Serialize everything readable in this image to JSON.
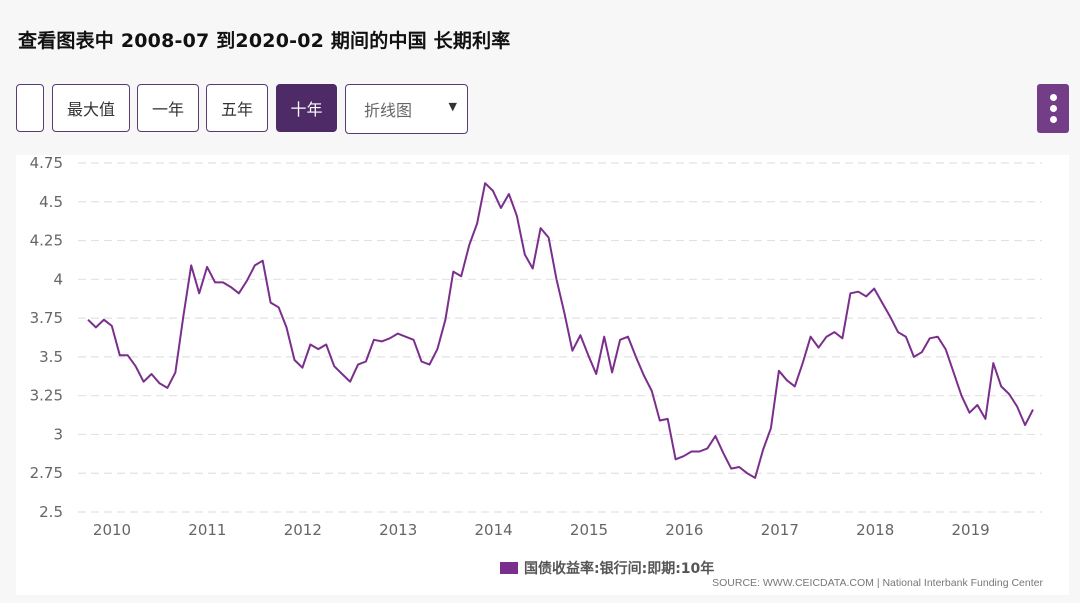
{
  "header": {
    "title": "查看图表中 2008-07 到2020-02 期间的中国 长期利率"
  },
  "toolbar": {
    "blank_button": "",
    "buttons": [
      {
        "label": "最大值",
        "active": false
      },
      {
        "label": "一年",
        "active": false
      },
      {
        "label": "五年",
        "active": false
      },
      {
        "label": "十年",
        "active": true
      }
    ],
    "chart_type_select": {
      "value": "折线图",
      "caret": "▼"
    },
    "menu_icon": "vertical-ellipsis-icon"
  },
  "colors": {
    "line": "#7b2f8c",
    "active_button": "#4e2a67",
    "menu_button": "#733d88",
    "grid": "#e2e2e2",
    "axis_text": "#666666"
  },
  "legend": {
    "label": "国债收益率:银行间:即期:10年",
    "color": "#7b2f8c"
  },
  "source": "SOURCE: WWW.CEICDATA.COM | National Interbank Funding Center",
  "chart_data": {
    "type": "line",
    "title": "查看图表中 2008-07 到2020-02 期间的中国 长期利率",
    "xlabel": "",
    "ylabel": "",
    "ylim": [
      2.5,
      4.75
    ],
    "yticks": [
      "4.75",
      "4.5",
      "4.25",
      "4",
      "3.75",
      "3.5",
      "3.25",
      "3",
      "2.75",
      "2.5"
    ],
    "xticks": [
      "2010",
      "2011",
      "2012",
      "2013",
      "2014",
      "2015",
      "2016",
      "2017",
      "2018",
      "2019"
    ],
    "grid": "horizontal-dashed",
    "legend_position": "bottom",
    "x_start": "2009-10",
    "x_frequency": "monthly",
    "series": [
      {
        "name": "国债收益率:银行间:即期:10年",
        "values": [
          3.74,
          3.69,
          3.74,
          3.7,
          3.51,
          3.51,
          3.44,
          3.34,
          3.39,
          3.33,
          3.3,
          3.4,
          3.76,
          4.09,
          3.91,
          4.08,
          3.98,
          3.98,
          3.95,
          3.91,
          3.99,
          4.09,
          4.12,
          3.85,
          3.82,
          3.69,
          3.48,
          3.43,
          3.58,
          3.55,
          3.58,
          3.44,
          3.39,
          3.34,
          3.45,
          3.47,
          3.61,
          3.6,
          3.62,
          3.65,
          3.63,
          3.61,
          3.47,
          3.45,
          3.55,
          3.74,
          4.05,
          4.02,
          4.22,
          4.36,
          4.62,
          4.57,
          4.46,
          4.55,
          4.41,
          4.16,
          4.07,
          4.33,
          4.27,
          4.0,
          3.78,
          3.54,
          3.64,
          3.51,
          3.39,
          3.63,
          3.4,
          3.61,
          3.63,
          3.5,
          3.38,
          3.28,
          3.09,
          3.1,
          2.84,
          2.86,
          2.89,
          2.89,
          2.91,
          2.99,
          2.88,
          2.78,
          2.79,
          2.75,
          2.72,
          2.9,
          3.04,
          3.41,
          3.35,
          3.31,
          3.46,
          3.63,
          3.56,
          3.63,
          3.66,
          3.62,
          3.91,
          3.92,
          3.89,
          3.94,
          3.85,
          3.76,
          3.66,
          3.63,
          3.5,
          3.53,
          3.62,
          3.63,
          3.55,
          3.4,
          3.25,
          3.14,
          3.19,
          3.1,
          3.46,
          3.31,
          3.26,
          3.18,
          3.06,
          3.16
        ]
      }
    ]
  }
}
